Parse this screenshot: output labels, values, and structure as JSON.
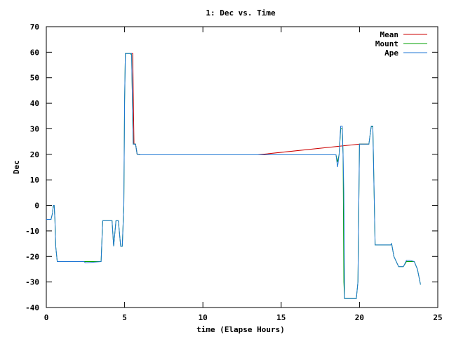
{
  "chart_data": {
    "type": "line",
    "title": "1: Dec vs. Time",
    "xlabel": "time (Elapse Hours)",
    "ylabel": "Dec",
    "xlim": [
      0,
      25
    ],
    "ylim": [
      -40,
      70
    ],
    "xticks": [
      0,
      5,
      10,
      15,
      20,
      25
    ],
    "yticks": [
      -40,
      -30,
      -20,
      -10,
      0,
      10,
      20,
      30,
      40,
      50,
      60,
      70
    ],
    "grid": false,
    "legend_position": "top-right",
    "series": [
      {
        "name": "Mean",
        "color": "#cc0000",
        "x": [
          5.38,
          5.45,
          5.52,
          5.6,
          5.7,
          5.8,
          6.0,
          8.0,
          10.0,
          12.0,
          13.5,
          20.0,
          20.5,
          20.6
        ],
        "y": [
          59.5,
          59.5,
          59.5,
          24.0,
          24.0,
          20.0,
          19.8,
          19.8,
          19.8,
          19.8,
          19.8,
          24.0,
          24.0,
          24.0
        ]
      },
      {
        "name": "Mount",
        "color": "#00a000",
        "x": [
          0,
          0.3,
          0.4,
          0.45,
          0.5,
          0.55,
          0.6,
          0.7,
          1.0,
          2.0,
          3.5,
          3.6,
          4.0,
          4.2,
          4.3,
          4.45,
          4.6,
          4.75,
          4.85,
          4.95,
          5.0,
          5.05,
          5.1,
          5.2,
          5.35,
          5.45,
          5.5,
          5.55,
          5.6,
          5.7,
          5.8,
          6.0,
          10.0,
          13.5,
          15.0,
          18.0,
          18.5,
          18.6,
          18.7,
          18.8,
          18.9,
          18.95,
          19.0,
          19.05,
          19.1,
          19.5,
          19.8,
          19.9,
          20.0,
          20.5,
          20.6,
          20.75,
          20.85,
          21.0,
          22.0,
          22.05,
          22.2,
          22.5,
          22.8,
          23.0,
          23.2,
          23.5,
          23.7,
          23.8,
          23.9
        ],
        "y": [
          -5.5,
          -5.5,
          -3.0,
          0.0,
          0.0,
          -5.5,
          -16.0,
          -22.0,
          -22.0,
          -22.0,
          -22.0,
          -6.0,
          -6.0,
          -6.0,
          -16.0,
          -6.0,
          -6.0,
          -16.0,
          -16.0,
          0.0,
          41.0,
          59.5,
          59.5,
          59.5,
          59.5,
          59.0,
          40.0,
          24.0,
          24.0,
          24.0,
          20.0,
          19.8,
          19.8,
          19.8,
          19.8,
          19.8,
          19.8,
          17.0,
          20.0,
          30.0,
          30.0,
          20.0,
          -30.0,
          -36.5,
          -36.5,
          -36.5,
          -36.5,
          -30.0,
          24.0,
          24.0,
          24.0,
          30.8,
          30.8,
          -15.5,
          -15.5,
          -15.0,
          -20.0,
          -24.0,
          -24.0,
          -22.0,
          -22.0,
          -22.0,
          -25.0,
          -28.0,
          -31.0
        ]
      },
      {
        "name": "Ape",
        "color": "#1f77d4",
        "x": [
          0,
          0.3,
          0.4,
          0.45,
          0.5,
          0.55,
          0.6,
          0.7,
          1.0,
          2.0,
          2.4,
          2.5,
          3.5,
          3.6,
          4.0,
          4.2,
          4.3,
          4.45,
          4.6,
          4.75,
          4.85,
          4.95,
          5.0,
          5.05,
          5.1,
          5.2,
          5.35,
          5.45,
          5.5,
          5.55,
          5.6,
          5.7,
          5.8,
          6.0,
          10.0,
          13.5,
          15.0,
          18.0,
          18.5,
          18.6,
          18.7,
          18.8,
          18.9,
          18.95,
          19.0,
          19.05,
          19.1,
          19.5,
          19.8,
          19.9,
          20.0,
          20.5,
          20.6,
          20.75,
          20.85,
          21.0,
          22.0,
          22.05,
          22.2,
          22.5,
          22.8,
          23.0,
          23.2,
          23.5,
          23.7,
          23.8,
          23.9
        ],
        "y": [
          -5.5,
          -5.5,
          -3.0,
          0.0,
          0.0,
          -5.5,
          -16.0,
          -22.0,
          -22.0,
          -22.0,
          -22.0,
          -22.5,
          -22.0,
          -6.0,
          -6.0,
          -6.0,
          -16.0,
          -6.0,
          -6.0,
          -16.0,
          -16.0,
          0.0,
          41.0,
          59.5,
          59.5,
          59.5,
          59.5,
          59.5,
          40.0,
          24.0,
          24.0,
          24.0,
          20.0,
          19.8,
          19.8,
          19.8,
          19.8,
          19.8,
          19.8,
          15.0,
          20.0,
          31.0,
          31.0,
          20.0,
          5.0,
          -36.5,
          -36.5,
          -36.5,
          -36.5,
          -30.0,
          24.0,
          24.0,
          24.0,
          31.0,
          31.0,
          -15.5,
          -15.5,
          -15.0,
          -20.0,
          -24.0,
          -24.0,
          -21.5,
          -21.5,
          -22.0,
          -25.0,
          -28.0,
          -31.0
        ]
      }
    ]
  }
}
